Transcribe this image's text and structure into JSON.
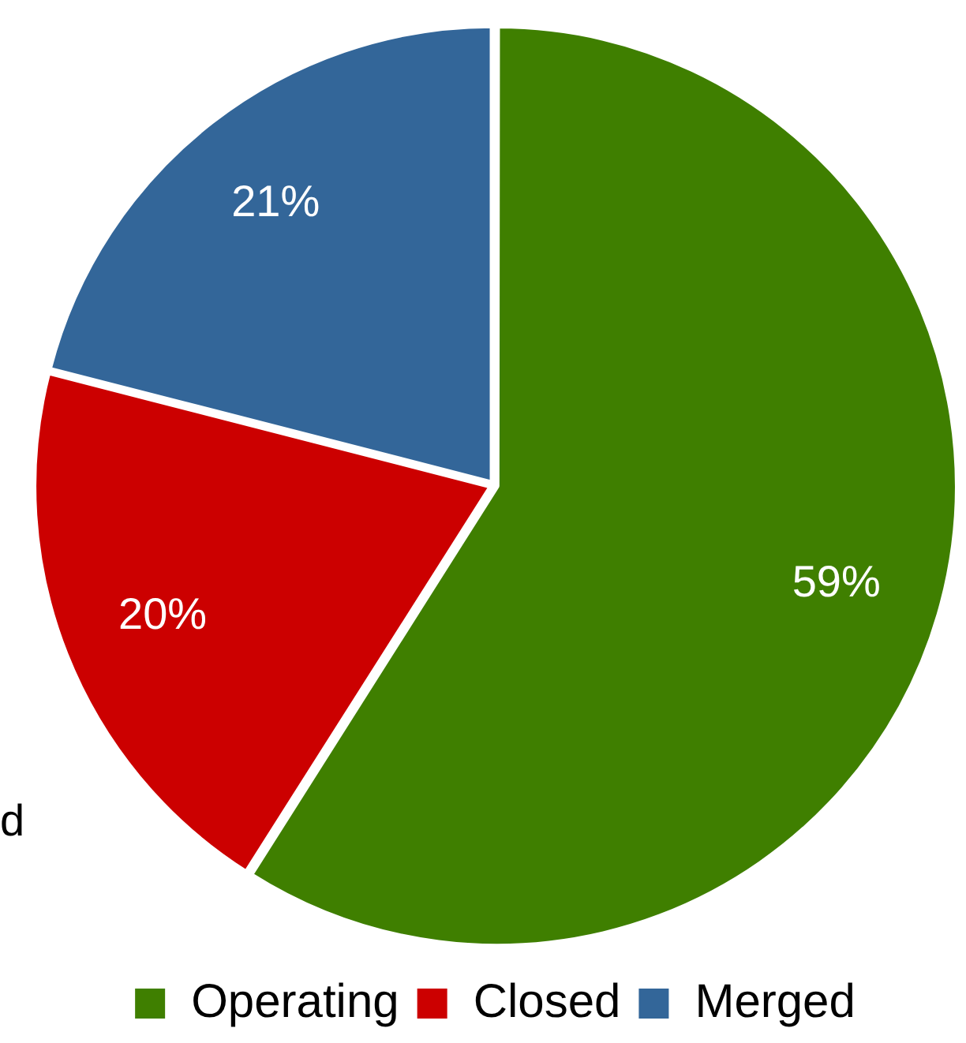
{
  "chart_data": {
    "type": "pie",
    "categories": [
      "Operating",
      "Closed",
      "Merged"
    ],
    "values": [
      59,
      20,
      21
    ],
    "colors": [
      "#3f7f00",
      "#cc0000",
      "#336699"
    ],
    "value_labels": [
      "59%",
      "20%",
      "21%"
    ],
    "legend": "bottom",
    "annotations": [
      "d"
    ]
  }
}
